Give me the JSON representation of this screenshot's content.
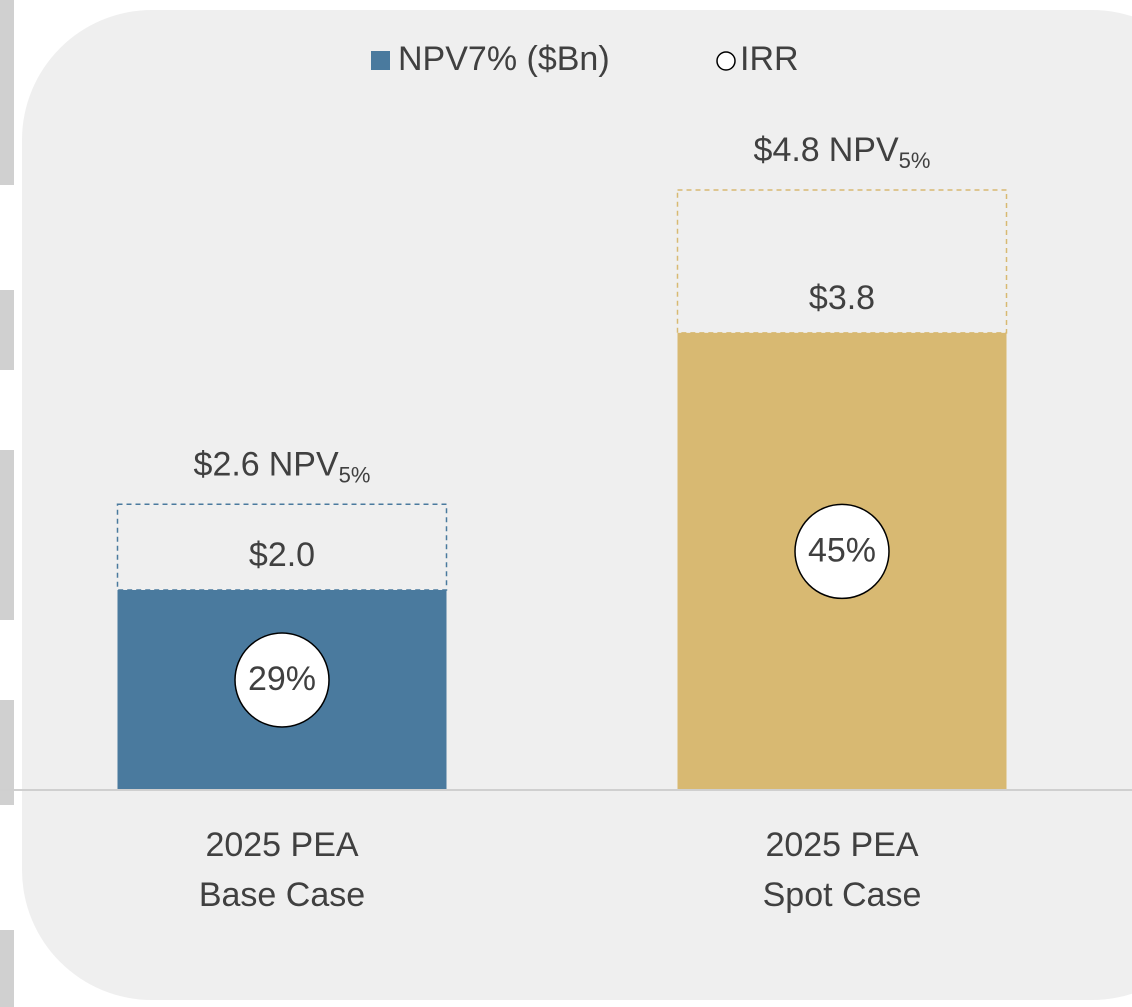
{
  "chart_data": {
    "type": "bar",
    "categories": [
      [
        "2025 PEA",
        "Base Case"
      ],
      [
        "2025 PEA",
        "Spot Case"
      ]
    ],
    "ylim": [
      0.6,
      5.85
    ],
    "series": [
      {
        "name": "NPV7% ($Bn)",
        "color": "#4a7a9e",
        "colors": [
          "#4a7a9e",
          "#d8b972"
        ],
        "values": [
          2.0,
          3.8
        ],
        "value_labels": [
          "$2.0",
          "$3.8"
        ]
      },
      {
        "name": "IRR",
        "color": "#ffffff",
        "values": [
          29,
          45
        ],
        "value_labels": [
          "29%",
          "45%"
        ]
      }
    ],
    "dashed_outline": {
      "values": [
        2.6,
        4.8
      ],
      "value_labels": [
        "$2.6",
        "$4.8"
      ],
      "label_suffix": "NPV",
      "label_subscript": "5%",
      "colors": [
        "#4a7a9e",
        "#d8b972"
      ]
    }
  }
}
